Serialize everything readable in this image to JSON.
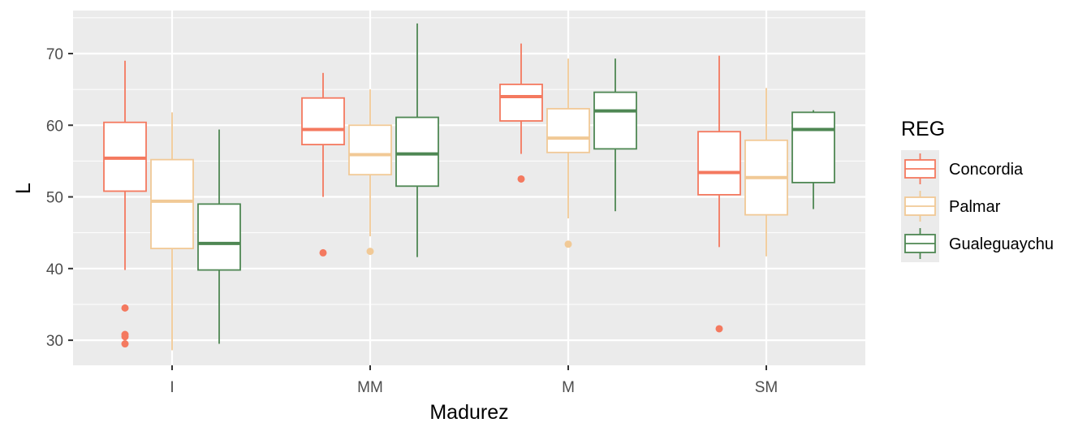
{
  "colors": {
    "panel_bg": "#EBEBEB",
    "grid": "#FFFFFF",
    "axis_text": "#4D4D4D",
    "title_text": "#000000"
  },
  "chart_data": {
    "type": "boxplot",
    "xlabel": "Madurez",
    "ylabel": "L",
    "categories": [
      "I",
      "MM",
      "M",
      "SM"
    ],
    "ylim": [
      26.5,
      76
    ],
    "yticks": [
      30,
      40,
      50,
      60,
      70
    ],
    "grid": true,
    "legend": {
      "title": "REG",
      "position": "right",
      "entries": [
        "Concordia",
        "Palmar",
        "Gualeguaychu"
      ]
    },
    "series": [
      {
        "name": "Concordia",
        "color": "#F4795F",
        "boxes": [
          {
            "category": "I",
            "whisker_low": 39.8,
            "q1": 50.8,
            "median": 55.4,
            "q3": 60.4,
            "whisker_high": 69.0,
            "outliers": [
              34.5,
              30.8,
              30.5,
              29.5
            ]
          },
          {
            "category": "MM",
            "whisker_low": 50.0,
            "q1": 57.3,
            "median": 59.4,
            "q3": 63.8,
            "whisker_high": 67.3,
            "outliers": [
              42.2
            ]
          },
          {
            "category": "M",
            "whisker_low": 56.0,
            "q1": 60.6,
            "median": 64.0,
            "q3": 65.7,
            "whisker_high": 71.4,
            "outliers": [
              52.5
            ]
          },
          {
            "category": "SM",
            "whisker_low": 43.0,
            "q1": 50.3,
            "median": 53.4,
            "q3": 59.1,
            "whisker_high": 69.7,
            "outliers": [
              31.6
            ]
          }
        ]
      },
      {
        "name": "Palmar",
        "color": "#F1C996",
        "boxes": [
          {
            "category": "I",
            "whisker_low": 28.6,
            "q1": 42.8,
            "median": 49.4,
            "q3": 55.2,
            "whisker_high": 61.8,
            "outliers": []
          },
          {
            "category": "MM",
            "whisker_low": 44.5,
            "q1": 53.1,
            "median": 55.9,
            "q3": 60.0,
            "whisker_high": 65.0,
            "outliers": [
              42.4
            ]
          },
          {
            "category": "M",
            "whisker_low": 47.0,
            "q1": 56.2,
            "median": 58.2,
            "q3": 62.3,
            "whisker_high": 69.3,
            "outliers": [
              43.4
            ]
          },
          {
            "category": "SM",
            "whisker_low": 41.7,
            "q1": 47.5,
            "median": 52.7,
            "q3": 57.9,
            "whisker_high": 65.2,
            "outliers": []
          }
        ]
      },
      {
        "name": "Gualeguaychu",
        "color": "#4E8753",
        "boxes": [
          {
            "category": "I",
            "whisker_low": 29.5,
            "q1": 39.8,
            "median": 43.5,
            "q3": 49.0,
            "whisker_high": 59.4,
            "outliers": []
          },
          {
            "category": "MM",
            "whisker_low": 41.6,
            "q1": 51.5,
            "median": 56.0,
            "q3": 61.1,
            "whisker_high": 74.2,
            "outliers": []
          },
          {
            "category": "M",
            "whisker_low": 48.0,
            "q1": 56.7,
            "median": 62.0,
            "q3": 64.6,
            "whisker_high": 69.3,
            "outliers": []
          },
          {
            "category": "SM",
            "whisker_low": 48.3,
            "q1": 52.0,
            "median": 59.4,
            "q3": 61.8,
            "whisker_high": 62.1,
            "outliers": []
          }
        ]
      }
    ]
  }
}
